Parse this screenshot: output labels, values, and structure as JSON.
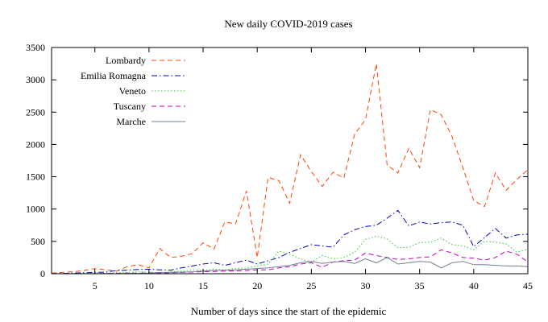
{
  "chart_data": {
    "type": "line",
    "title": "New daily COVID-2019 cases",
    "xlabel": "Number of days since the start of the epidemic",
    "ylabel": "",
    "xlim": [
      1,
      45
    ],
    "ylim": [
      0,
      3500
    ],
    "x_ticks": [
      5,
      10,
      15,
      20,
      25,
      30,
      35,
      40,
      45
    ],
    "y_ticks": [
      0,
      500,
      1000,
      1500,
      2000,
      2500,
      3000,
      3500
    ],
    "grid": false,
    "legend": "top-left",
    "series": [
      {
        "name": "Lombardy",
        "color": "#ff4500",
        "dash": "dashed",
        "x": [
          1,
          2,
          3,
          4,
          5,
          6,
          7,
          8,
          9,
          10,
          11,
          12,
          13,
          14,
          15,
          16,
          17,
          18,
          19,
          20,
          21,
          22,
          23,
          24,
          25,
          26,
          27,
          28,
          29,
          30,
          31,
          32,
          33,
          34,
          35,
          36,
          37,
          38,
          39,
          40,
          41,
          42,
          43,
          44,
          45
        ],
        "values": [
          10,
          20,
          30,
          50,
          80,
          60,
          40,
          110,
          140,
          90,
          390,
          250,
          270,
          310,
          480,
          380,
          800,
          770,
          1280,
          250,
          1490,
          1440,
          1090,
          1840,
          1580,
          1350,
          1570,
          1480,
          2160,
          2380,
          3250,
          1680,
          1560,
          1940,
          1640,
          2540,
          2460,
          2120,
          1640,
          1130,
          1040,
          1560,
          1290,
          1460,
          1610
        ]
      },
      {
        "name": "Emilia Romagna",
        "color": "#0000cd",
        "dash": "dash-dot",
        "x": [
          1,
          2,
          3,
          4,
          5,
          6,
          7,
          8,
          9,
          10,
          11,
          12,
          13,
          14,
          15,
          16,
          17,
          18,
          19,
          20,
          21,
          22,
          23,
          24,
          25,
          26,
          27,
          28,
          29,
          30,
          31,
          32,
          33,
          34,
          35,
          36,
          37,
          38,
          39,
          40,
          41,
          42,
          43,
          44,
          45
        ],
        "values": [
          0,
          5,
          10,
          15,
          20,
          25,
          50,
          55,
          65,
          70,
          60,
          55,
          90,
          120,
          150,
          170,
          130,
          170,
          210,
          150,
          200,
          250,
          330,
          390,
          450,
          430,
          410,
          600,
          680,
          730,
          750,
          860,
          980,
          740,
          800,
          770,
          790,
          800,
          750,
          420,
          560,
          700,
          550,
          600,
          610
        ]
      },
      {
        "name": "Veneto",
        "color": "#32cd32",
        "dash": "dotted",
        "x": [
          1,
          2,
          3,
          4,
          5,
          6,
          7,
          8,
          9,
          10,
          11,
          12,
          13,
          14,
          15,
          16,
          17,
          18,
          19,
          20,
          21,
          22,
          23,
          24,
          25,
          26,
          27,
          28,
          29,
          30,
          31,
          32,
          33,
          34,
          35,
          36,
          37,
          38,
          39,
          40,
          41,
          42,
          43,
          44,
          45
        ],
        "values": [
          0,
          0,
          5,
          5,
          10,
          10,
          20,
          20,
          30,
          25,
          15,
          30,
          40,
          60,
          50,
          70,
          60,
          80,
          90,
          120,
          150,
          350,
          300,
          230,
          180,
          280,
          230,
          250,
          330,
          530,
          580,
          540,
          400,
          410,
          480,
          490,
          550,
          450,
          430,
          370,
          500,
          490,
          460,
          330,
          380
        ]
      },
      {
        "name": "Tuscany",
        "color": "#c000c0",
        "dash": "dashed",
        "x": [
          1,
          2,
          3,
          4,
          5,
          6,
          7,
          8,
          9,
          10,
          11,
          12,
          13,
          14,
          15,
          16,
          17,
          18,
          19,
          20,
          21,
          22,
          23,
          24,
          25,
          26,
          27,
          28,
          29,
          30,
          31,
          32,
          33,
          34,
          35,
          36,
          37,
          38,
          39,
          40,
          41,
          42,
          43,
          44,
          45
        ],
        "values": [
          0,
          0,
          0,
          0,
          0,
          5,
          5,
          10,
          10,
          15,
          10,
          15,
          20,
          25,
          30,
          35,
          40,
          45,
          50,
          60,
          60,
          90,
          110,
          150,
          170,
          100,
          180,
          200,
          210,
          320,
          280,
          250,
          220,
          230,
          250,
          260,
          370,
          320,
          250,
          240,
          210,
          250,
          350,
          300,
          180
        ]
      },
      {
        "name": "Marche",
        "color": "#708090",
        "dash": "solid",
        "x": [
          1,
          2,
          3,
          4,
          5,
          6,
          7,
          8,
          9,
          10,
          11,
          12,
          13,
          14,
          15,
          16,
          17,
          18,
          19,
          20,
          21,
          22,
          23,
          24,
          25,
          26,
          27,
          28,
          29,
          30,
          31,
          32,
          33,
          34,
          35,
          36,
          37,
          38,
          39,
          40,
          41,
          42,
          43,
          44,
          45
        ],
        "values": [
          0,
          0,
          0,
          0,
          0,
          0,
          0,
          5,
          5,
          10,
          20,
          20,
          25,
          30,
          40,
          50,
          55,
          60,
          70,
          80,
          90,
          110,
          130,
          170,
          190,
          160,
          180,
          190,
          160,
          230,
          170,
          250,
          150,
          170,
          190,
          180,
          90,
          170,
          190,
          140,
          140,
          130,
          120,
          120,
          110
        ]
      }
    ]
  }
}
